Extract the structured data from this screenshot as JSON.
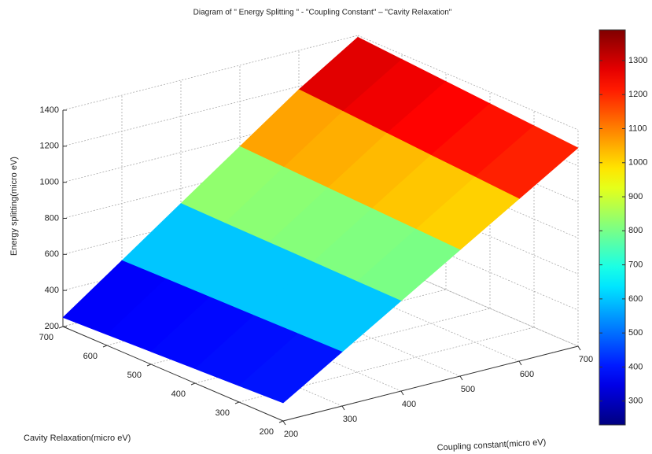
{
  "chart_data": {
    "type": "surface",
    "title": "Diagram of \" Energy Splitting \" - \"Coupling Constant\" – \"Cavity Relaxation\"",
    "xlabel": "Coupling constant(micro eV)",
    "ylabel": "Cavity Relaxation(micro eV)",
    "zlabel": "Energy splitting(micro eV)",
    "x": [
      200,
      300,
      400,
      500,
      600,
      700
    ],
    "y": [
      200,
      300,
      400,
      500,
      600,
      700
    ],
    "z": [
      [
        300,
        290,
        280,
        270,
        260,
        250
      ],
      [
        500,
        497,
        493,
        490,
        487,
        483
      ],
      [
        700,
        703,
        707,
        710,
        713,
        717
      ],
      [
        900,
        910,
        920,
        930,
        940,
        950
      ],
      [
        1100,
        1117,
        1133,
        1150,
        1167,
        1183
      ],
      [
        1300,
        1318,
        1336,
        1354,
        1372,
        1390
      ]
    ],
    "xlim": [
      200,
      700
    ],
    "ylim": [
      200,
      700
    ],
    "zlim": [
      200,
      1400
    ],
    "xticks": [
      200,
      300,
      400,
      500,
      600,
      700
    ],
    "yticks": [
      200,
      300,
      400,
      500,
      600,
      700
    ],
    "zticks": [
      200,
      400,
      600,
      800,
      1000,
      1200,
      1400
    ],
    "clim": [
      230,
      1390
    ],
    "cticks": [
      300,
      400,
      500,
      600,
      700,
      800,
      900,
      1000,
      1100,
      1200,
      1300
    ],
    "colormap": "jet",
    "grid": true
  }
}
